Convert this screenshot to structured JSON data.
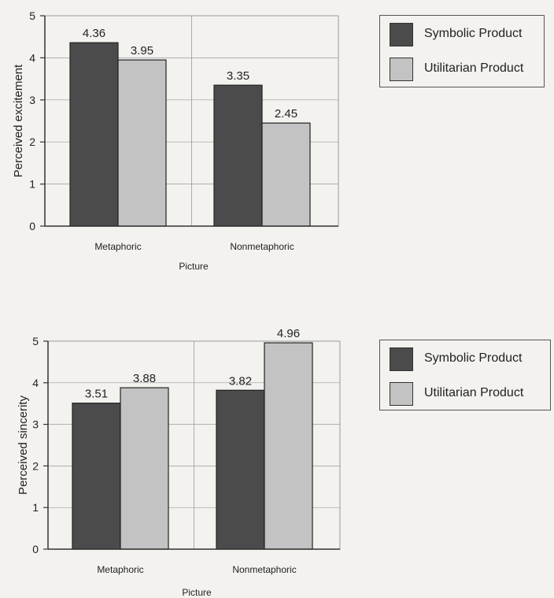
{
  "colors": {
    "symbolic": "#4b4b4b",
    "utilitarian": "#c3c3c3",
    "axis": "#333333",
    "grid": "#9a9a9a"
  },
  "chart_data": [
    {
      "type": "bar",
      "categories": [
        "Metaphoric",
        "Nonmetaphoric"
      ],
      "series": [
        {
          "name": "Symbolic Product",
          "values": [
            4.36,
            3.35
          ],
          "labels": [
            "4.36",
            "3.35"
          ]
        },
        {
          "name": "Utilitarian Product",
          "values": [
            3.95,
            2.45
          ],
          "labels": [
            "3.95",
            "2.45"
          ]
        }
      ],
      "xlabel": "Picture",
      "ylabel": "Perceived excitement",
      "ylim": [
        0,
        5
      ],
      "yticks": [
        "0",
        "1",
        "2",
        "3",
        "4",
        "5"
      ],
      "grid": true,
      "legend_position": "top-right"
    },
    {
      "type": "bar",
      "categories": [
        "Metaphoric",
        "Nonmetaphoric"
      ],
      "series": [
        {
          "name": "Symbolic Product",
          "values": [
            3.51,
            3.82
          ],
          "labels": [
            "3.51",
            "3.82"
          ]
        },
        {
          "name": "Utilitarian Product",
          "values": [
            3.88,
            4.96
          ],
          "labels": [
            "3.88",
            "4.96"
          ]
        }
      ],
      "xlabel": "Picture",
      "ylabel": "Perceived sincerity",
      "ylim": [
        0,
        5
      ],
      "yticks": [
        "0",
        "1",
        "2",
        "3",
        "4",
        "5"
      ],
      "grid": true,
      "legend_position": "top-right"
    }
  ]
}
